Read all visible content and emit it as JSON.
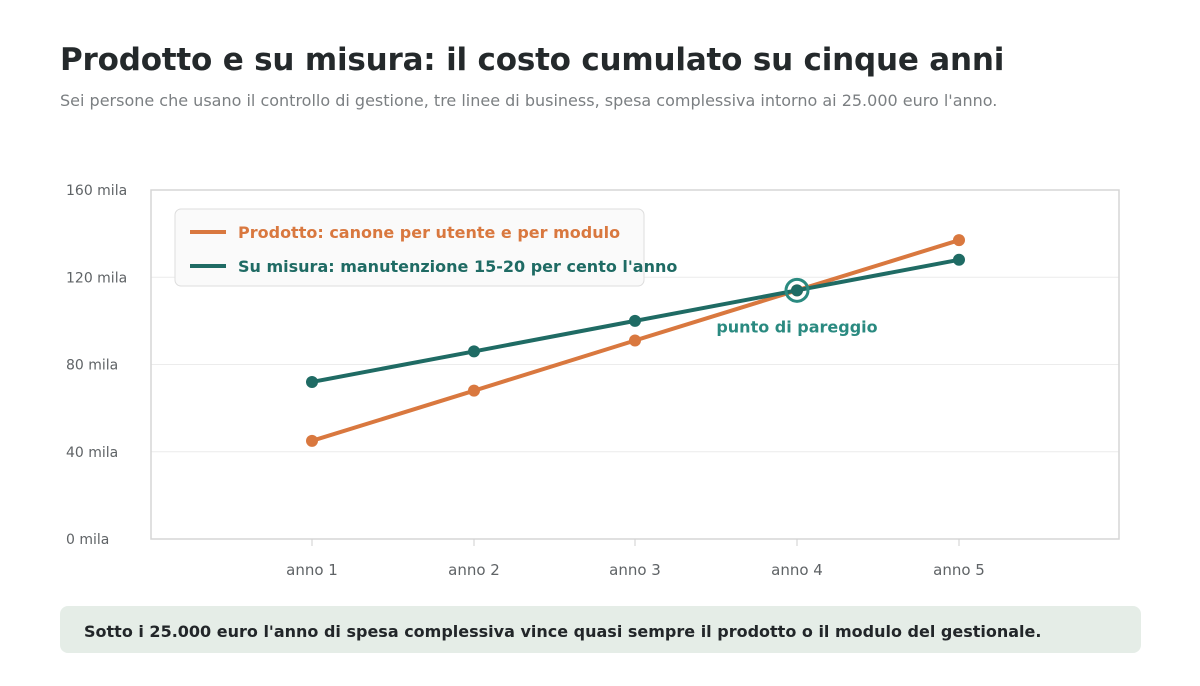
{
  "header": {
    "title": "Prodotto e su misura: il costo cumulato su cinque anni",
    "subtitle": "Sei persone che usano il controllo di gestione, tre linee di business, spesa complessiva intorno ai 25.000 euro l'anno."
  },
  "chart_data": {
    "type": "line",
    "title": "Prodotto e su misura: il costo cumulato su cinque anni",
    "subtitle": "Sei persone che usano il controllo di gestione, tre linee di business, spesa complessiva intorno ai 25.000 euro l'anno.",
    "xlabel": "",
    "ylabel": "",
    "categories": [
      "anno 1",
      "anno 2",
      "anno 3",
      "anno 4",
      "anno 5"
    ],
    "ylim": [
      0,
      160000
    ],
    "y_ticks": [
      0,
      40000,
      80000,
      120000,
      160000
    ],
    "y_tick_labels": [
      "0 mila",
      "40 mila",
      "80 mila",
      "120 mila",
      "160 mila"
    ],
    "grid": true,
    "legend_position": "top-left",
    "series": [
      {
        "name": "Prodotto: canone per utente e per modulo",
        "color": "#d9783f",
        "values": [
          45000,
          68000,
          91000,
          114000,
          137000
        ]
      },
      {
        "name": "Su misura: manutenzione 15-20 per cento l'anno",
        "color": "#1f6b64",
        "values": [
          72000,
          86000,
          100000,
          114000,
          128000
        ]
      }
    ],
    "annotations": [
      {
        "text": "punto di pareggio",
        "x": "anno 4",
        "y": 114000,
        "color": "#2a8a80"
      }
    ]
  },
  "footer": {
    "note": "Sotto i 25.000 euro l'anno di spesa complessiva vince quasi sempre il prodotto o il modulo del gestionale."
  }
}
